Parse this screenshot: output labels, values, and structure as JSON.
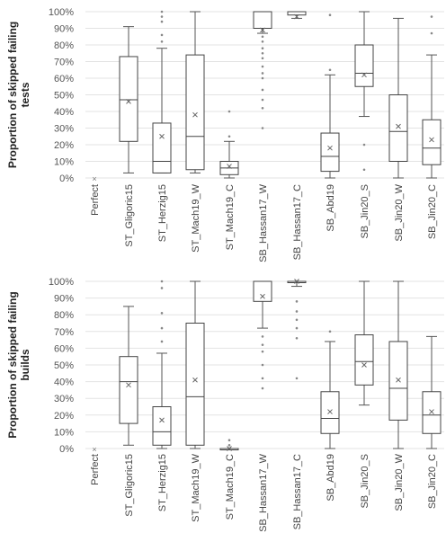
{
  "chart_data": [
    {
      "type": "box",
      "ylabel": "Proportion of skipped failing tests",
      "ylabel_lines": [
        "Proportion of skipped failing",
        "tests"
      ],
      "ylim": [
        0,
        100
      ],
      "yticks": [
        "0%",
        "10%",
        "20%",
        "30%",
        "40%",
        "50%",
        "60%",
        "70%",
        "80%",
        "90%",
        "100%"
      ],
      "legend": "none",
      "series": [
        {
          "category": "Perfect",
          "values": []
        },
        {
          "category": "ST_Gligoric15",
          "min": 3,
          "q1": 22,
          "median": 47,
          "q3": 73,
          "max": 91,
          "mean": 46,
          "outliers": []
        },
        {
          "category": "ST_Herzig15",
          "min": 3,
          "q1": 3,
          "median": 10,
          "q3": 33,
          "max": 78,
          "mean": 25,
          "outliers": [
            82,
            86,
            94,
            97,
            100
          ]
        },
        {
          "category": "ST_Mach19_W",
          "min": 3,
          "q1": 5,
          "median": 25,
          "q3": 74,
          "max": 100,
          "mean": 38,
          "outliers": []
        },
        {
          "category": "ST_Mach19_C",
          "min": 0,
          "q1": 2,
          "median": 6,
          "q3": 10,
          "max": 22,
          "mean": 7,
          "outliers": [
            25,
            40
          ]
        },
        {
          "category": "SB_Hassan17_W",
          "min": 87,
          "q1": 90,
          "median": 100,
          "q3": 100,
          "max": 100,
          "mean": 89,
          "outliers": [
            30,
            42,
            47,
            53,
            60,
            63,
            67,
            72,
            75,
            78,
            82,
            85
          ]
        },
        {
          "category": "SB_Hassan17_C",
          "min": 96,
          "q1": 98,
          "median": 100,
          "q3": 100,
          "max": 100,
          "mean": 97,
          "outliers": []
        },
        {
          "category": "SB_Abd19",
          "min": 0,
          "q1": 4,
          "median": 13,
          "q3": 27,
          "max": 62,
          "mean": 18,
          "outliers": [
            65,
            98
          ]
        },
        {
          "category": "SB_Jin20_S",
          "min": 37,
          "q1": 55,
          "median": 63,
          "q3": 80,
          "max": 100,
          "mean": 62,
          "outliers": [
            5,
            20
          ]
        },
        {
          "category": "SB_Jin20_W",
          "min": 0,
          "q1": 10,
          "median": 28,
          "q3": 50,
          "max": 96,
          "mean": 31,
          "outliers": []
        },
        {
          "category": "SB_Jin20_C",
          "min": 0,
          "q1": 8,
          "median": 18,
          "q3": 35,
          "max": 74,
          "mean": 23,
          "outliers": [
            87,
            97
          ]
        }
      ]
    },
    {
      "type": "box",
      "ylabel": "Proportion of skipped failing builds",
      "ylabel_lines": [
        "Proportion of skipped failing",
        "builds"
      ],
      "ylim": [
        0,
        100
      ],
      "yticks": [
        "0%",
        "10%",
        "20%",
        "30%",
        "40%",
        "50%",
        "60%",
        "70%",
        "80%",
        "90%",
        "100%"
      ],
      "legend": "none",
      "series": [
        {
          "category": "Perfect",
          "values": []
        },
        {
          "category": "ST_Gligoric15",
          "min": 2,
          "q1": 15,
          "median": 40,
          "q3": 55,
          "max": 85,
          "mean": 38,
          "outliers": []
        },
        {
          "category": "ST_Herzig15",
          "min": 0,
          "q1": 2,
          "median": 10,
          "q3": 25,
          "max": 57,
          "mean": 17,
          "outliers": [
            64,
            72,
            81,
            96,
            100
          ]
        },
        {
          "category": "ST_Mach19_W",
          "min": 0,
          "q1": 2,
          "median": 31,
          "q3": 75,
          "max": 100,
          "mean": 41,
          "outliers": []
        },
        {
          "category": "ST_Mach19_C",
          "min": 0,
          "q1": 0,
          "median": 0,
          "q3": 0,
          "max": 0,
          "mean": 0,
          "outliers": [
            2,
            5
          ]
        },
        {
          "category": "SB_Hassan17_W",
          "min": 72,
          "q1": 88,
          "median": 100,
          "q3": 100,
          "max": 100,
          "mean": 91,
          "outliers": [
            36,
            42,
            50,
            58,
            62,
            67
          ]
        },
        {
          "category": "SB_Hassan17_C",
          "min": 97,
          "q1": 100,
          "median": 100,
          "q3": 100,
          "max": 100,
          "mean": 100,
          "outliers": [
            42,
            66,
            72,
            77,
            82,
            88
          ]
        },
        {
          "category": "SB_Abd19",
          "min": 0,
          "q1": 9,
          "median": 18,
          "q3": 34,
          "max": 64,
          "mean": 22,
          "outliers": [
            70
          ]
        },
        {
          "category": "SB_Jin20_S",
          "min": 26,
          "q1": 38,
          "median": 52,
          "q3": 68,
          "max": 100,
          "mean": 50,
          "outliers": []
        },
        {
          "category": "SB_Jin20_W",
          "min": 0,
          "q1": 17,
          "median": 36,
          "q3": 64,
          "max": 100,
          "mean": 41,
          "outliers": []
        },
        {
          "category": "SB_Jin20_C",
          "min": 0,
          "q1": 9,
          "median": 20,
          "q3": 34,
          "max": 67,
          "mean": 22,
          "outliers": []
        }
      ]
    }
  ]
}
